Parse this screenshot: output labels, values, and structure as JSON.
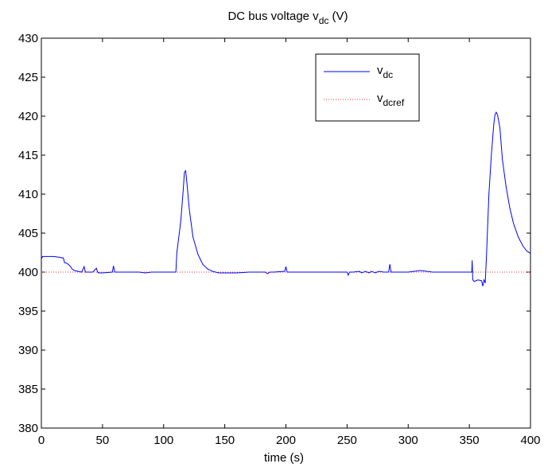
{
  "chart_data": {
    "type": "line",
    "title": {
      "main": "DC bus voltage  v",
      "sub": "dc",
      "suffix": "  (V)"
    },
    "xlabel": "time (s)",
    "ylabel": "",
    "xlim": [
      0,
      400
    ],
    "ylim": [
      380,
      430
    ],
    "xticks": [
      0,
      50,
      100,
      150,
      200,
      250,
      300,
      350,
      400
    ],
    "yticks": [
      380,
      385,
      390,
      395,
      400,
      405,
      410,
      415,
      420,
      425,
      430
    ],
    "grid": false,
    "legend_position": "top-right",
    "series": [
      {
        "name": "v_dc",
        "legend": {
          "main": "v",
          "sub": "dc"
        },
        "color": "#0000ff",
        "style": "solid",
        "points": [
          [
            0,
            401.7
          ],
          [
            1,
            402.0
          ],
          [
            5,
            402.0
          ],
          [
            10,
            402.0
          ],
          [
            15,
            401.9
          ],
          [
            18,
            401.8
          ],
          [
            19,
            401.2
          ],
          [
            20,
            401.2
          ],
          [
            22,
            401.0
          ],
          [
            24,
            400.7
          ],
          [
            25,
            400.4
          ],
          [
            27,
            400.2
          ],
          [
            30,
            400.1
          ],
          [
            33,
            400.0
          ],
          [
            35,
            400.7
          ],
          [
            36,
            400.0
          ],
          [
            40,
            400.0
          ],
          [
            42,
            400.0
          ],
          [
            45,
            400.5
          ],
          [
            46,
            400.0
          ],
          [
            47,
            399.9
          ],
          [
            50,
            399.9
          ],
          [
            58,
            400.0
          ],
          [
            59,
            400.8
          ],
          [
            60,
            400.0
          ],
          [
            80,
            400.0
          ],
          [
            85,
            399.9
          ],
          [
            90,
            400.0
          ],
          [
            110,
            400.0
          ],
          [
            110.8,
            402.5
          ],
          [
            112,
            404.0
          ],
          [
            114,
            406.5
          ],
          [
            116,
            410.5
          ],
          [
            117,
            412.8
          ],
          [
            118,
            413.0
          ],
          [
            119,
            411.5
          ],
          [
            121,
            408.0
          ],
          [
            124,
            404.5
          ],
          [
            128,
            402.3
          ],
          [
            132,
            401.0
          ],
          [
            136,
            400.4
          ],
          [
            140,
            400.1
          ],
          [
            145,
            399.9
          ],
          [
            150,
            399.9
          ],
          [
            160,
            399.9
          ],
          [
            170,
            400.0
          ],
          [
            183,
            400.0
          ],
          [
            185,
            399.8
          ],
          [
            187,
            400.0
          ],
          [
            190,
            400.0
          ],
          [
            199,
            400.1
          ],
          [
            200,
            400.7
          ],
          [
            201,
            400.0
          ],
          [
            210,
            400.0
          ],
          [
            230,
            400.0
          ],
          [
            250,
            400.0
          ],
          [
            251,
            399.6
          ],
          [
            252,
            400.0
          ],
          [
            255,
            400.0
          ],
          [
            260,
            400.1
          ],
          [
            262,
            399.9
          ],
          [
            265,
            400.1
          ],
          [
            268,
            399.9
          ],
          [
            270,
            400.1
          ],
          [
            273,
            399.9
          ],
          [
            276,
            400.1
          ],
          [
            280,
            400.0
          ],
          [
            284,
            400.0
          ],
          [
            285,
            401.0
          ],
          [
            286,
            400.0
          ],
          [
            290,
            400.0
          ],
          [
            300,
            400.0
          ],
          [
            310,
            400.2
          ],
          [
            320,
            400.0
          ],
          [
            340,
            400.0
          ],
          [
            352,
            400.0
          ],
          [
            352.3,
            401.5
          ],
          [
            352.8,
            399.0
          ],
          [
            354,
            398.8
          ],
          [
            357,
            399.0
          ],
          [
            360,
            398.9
          ],
          [
            361,
            398.2
          ],
          [
            362,
            399.0
          ],
          [
            363,
            398.6
          ],
          [
            364,
            402.0
          ],
          [
            366,
            410.0
          ],
          [
            367,
            412.5
          ],
          [
            368,
            415.0
          ],
          [
            370,
            419.0
          ],
          [
            371,
            420.2
          ],
          [
            372,
            420.5
          ],
          [
            373,
            420.2
          ],
          [
            375,
            418.5
          ],
          [
            377,
            414.5
          ],
          [
            380,
            411.0
          ],
          [
            383,
            408.3
          ],
          [
            386,
            406.3
          ],
          [
            390,
            404.5
          ],
          [
            394,
            403.3
          ],
          [
            397,
            402.7
          ],
          [
            400,
            402.4
          ]
        ]
      },
      {
        "name": "v_dcref",
        "legend": {
          "main": "v",
          "sub": "dcref"
        },
        "color": "#ff3030",
        "style": "dotted",
        "points": [
          [
            0,
            400
          ],
          [
            400,
            400
          ]
        ]
      }
    ]
  }
}
